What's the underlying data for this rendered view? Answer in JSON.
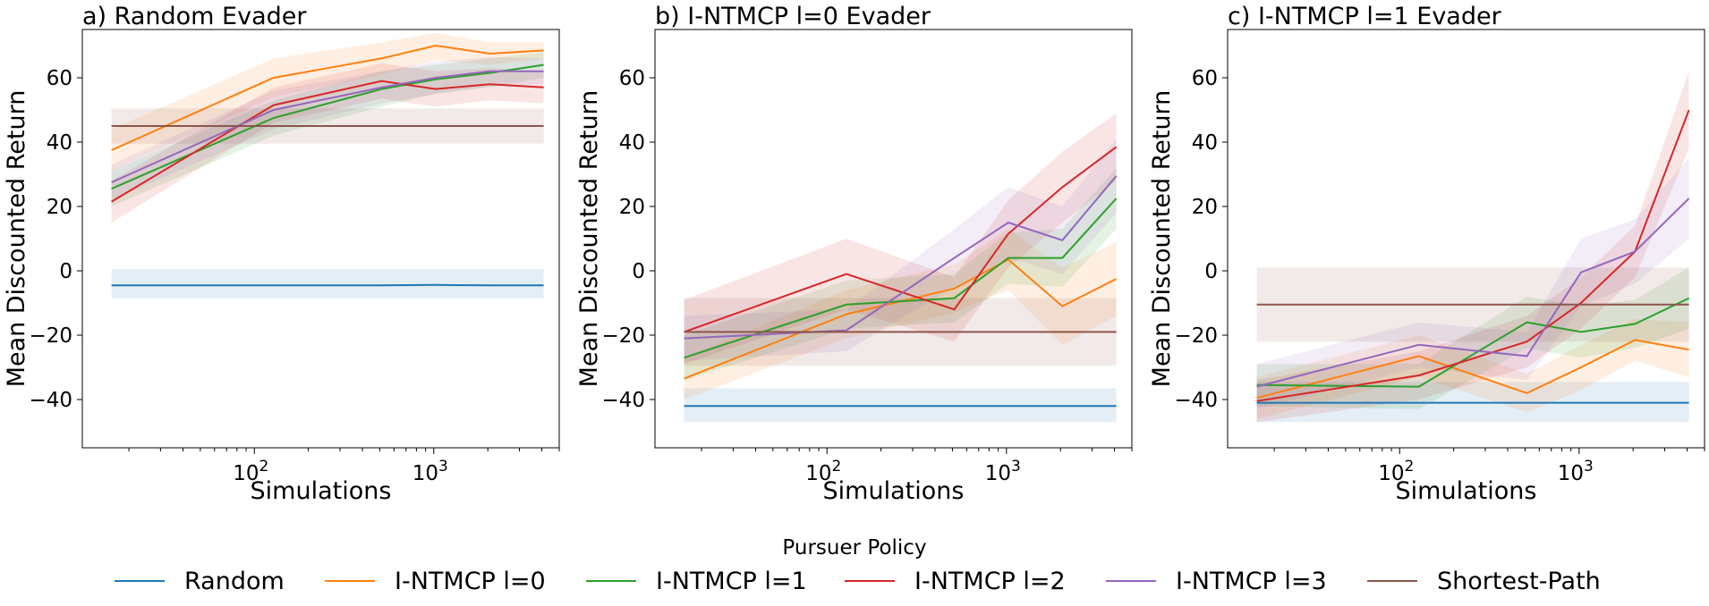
{
  "colors": {
    "random": "#1f77b4",
    "l0": "#ff7f0e",
    "l1": "#2ca02c",
    "l2": "#d62728",
    "l3": "#9467bd",
    "sp": "#8c564b"
  },
  "legend": {
    "title": "Pursuer Policy",
    "entries": [
      {
        "label": "Random",
        "color": "#1f77b4"
      },
      {
        "label": "I-NTMCP l=0",
        "color": "#ff7f0e"
      },
      {
        "label": "I-NTMCP l=1",
        "color": "#2ca02c"
      },
      {
        "label": "I-NTMCP l=2",
        "color": "#d62728"
      },
      {
        "label": "I-NTMCP l=3",
        "color": "#9467bd"
      },
      {
        "label": "Shortest-Path",
        "color": "#8c564b"
      }
    ]
  },
  "chart_data": [
    {
      "type": "line",
      "title": "a) Random Evader",
      "xlabel": "Simulations",
      "ylabel": "Mean Discounted Return",
      "xscale": "log",
      "xlim": [
        11,
        5000
      ],
      "ylim": [
        -55,
        75
      ],
      "yticks": [
        -40,
        -20,
        0,
        20,
        40,
        60
      ],
      "xticks": [
        {
          "value": 100,
          "label": "10",
          "exp": "2"
        },
        {
          "value": 1000,
          "label": "10",
          "exp": "3"
        }
      ],
      "x": [
        16,
        128,
        512,
        1024,
        2048,
        4096
      ],
      "series": [
        {
          "name": "Random",
          "color": "#1f77b4",
          "values": [
            -4.5,
            -4.5,
            -4.5,
            -4.4,
            -4.5,
            -4.5
          ],
          "lower": [
            -8.5,
            -8.5,
            -8.5,
            -8.5,
            -8.5,
            -8.5
          ],
          "upper": [
            0.5,
            0.5,
            0.5,
            0.5,
            0.5,
            0.5
          ]
        },
        {
          "name": "I-NTMCP l=0",
          "color": "#ff7f0e",
          "values": [
            37.5,
            60,
            66,
            70,
            67.5,
            68.5
          ],
          "lower": [
            31,
            54,
            61,
            65.5,
            64,
            66
          ],
          "upper": [
            44,
            66,
            71,
            74,
            71,
            71
          ]
        },
        {
          "name": "I-NTMCP l=1",
          "color": "#2ca02c",
          "values": [
            25.5,
            47.5,
            56.5,
            59.5,
            61.5,
            64
          ],
          "lower": [
            20,
            42,
            51,
            55,
            57,
            60
          ],
          "upper": [
            31,
            53,
            62,
            64,
            66,
            68
          ]
        },
        {
          "name": "I-NTMCP l=2",
          "color": "#d62728",
          "values": [
            21.5,
            51.5,
            59,
            56.5,
            58,
            57
          ],
          "lower": [
            15,
            46,
            53.5,
            51,
            53,
            52
          ],
          "upper": [
            28,
            57,
            64.5,
            62,
            63,
            62
          ]
        },
        {
          "name": "I-NTMCP l=3",
          "color": "#9467bd",
          "values": [
            27.5,
            50,
            57,
            60,
            62,
            62
          ],
          "lower": [
            22,
            44,
            52,
            55,
            57.5,
            58
          ],
          "upper": [
            33,
            56,
            62,
            65,
            66.5,
            66
          ]
        },
        {
          "name": "Shortest-Path",
          "color": "#8c564b",
          "values": [
            45,
            45,
            45,
            45,
            45,
            45
          ],
          "lower": [
            39.5,
            39.5,
            39.5,
            39.5,
            39.5,
            39.5
          ],
          "upper": [
            50.5,
            50.5,
            50.5,
            50.5,
            50.5,
            50.5
          ]
        }
      ]
    },
    {
      "type": "line",
      "title": "b) I-NTMCP l=0 Evader",
      "xlabel": "Simulations",
      "ylabel": "Mean Discounted Return",
      "xscale": "log",
      "xlim": [
        11,
        5000
      ],
      "ylim": [
        -55,
        75
      ],
      "yticks": [
        -40,
        -20,
        0,
        20,
        40,
        60
      ],
      "xticks": [
        {
          "value": 100,
          "label": "10",
          "exp": "2"
        },
        {
          "value": 1000,
          "label": "10",
          "exp": "3"
        }
      ],
      "x": [
        16,
        128,
        512,
        1024,
        2048,
        4096
      ],
      "series": [
        {
          "name": "Random",
          "color": "#1f77b4",
          "values": [
            -42,
            -42,
            -42,
            -42,
            -42,
            -42
          ],
          "lower": [
            -47,
            -47,
            -47,
            -47,
            -47,
            -47
          ],
          "upper": [
            -36.5,
            -36.5,
            -36.5,
            -36.5,
            -36.5,
            -36.5
          ]
        },
        {
          "name": "I-NTMCP l=0",
          "color": "#ff7f0e",
          "values": [
            -33.5,
            -13.5,
            -5.5,
            3.5,
            -11,
            -2.5
          ],
          "lower": [
            -40,
            -21,
            -13,
            -6,
            -23,
            -14
          ],
          "upper": [
            -27,
            -6,
            2,
            13,
            1,
            9
          ]
        },
        {
          "name": "I-NTMCP l=1",
          "color": "#2ca02c",
          "values": [
            -27,
            -10.5,
            -8.5,
            4,
            4,
            22.5
          ],
          "lower": [
            -34,
            -18,
            -16,
            -4,
            -5,
            13
          ],
          "upper": [
            -20,
            -3,
            -1,
            12,
            13,
            32
          ]
        },
        {
          "name": "I-NTMCP l=2",
          "color": "#d62728",
          "values": [
            -19,
            -1,
            -12,
            11.5,
            26,
            38.5
          ],
          "lower": [
            -29,
            -12,
            -22,
            1,
            15,
            28
          ],
          "upper": [
            -9,
            10,
            -2,
            22,
            37,
            49
          ]
        },
        {
          "name": "I-NTMCP l=3",
          "color": "#9467bd",
          "values": [
            -21,
            -18.5,
            4,
            15,
            9.5,
            29.5
          ],
          "lower": [
            -28,
            -25,
            -5,
            4,
            -1,
            18
          ],
          "upper": [
            -14,
            -12,
            13,
            26,
            20,
            41
          ]
        },
        {
          "name": "Shortest-Path",
          "color": "#8c564b",
          "values": [
            -19,
            -19,
            -19,
            -19,
            -19,
            -19
          ],
          "lower": [
            -29.5,
            -29.5,
            -29.5,
            -29.5,
            -29.5,
            -29.5
          ],
          "upper": [
            -8.5,
            -8.5,
            -8.5,
            -8.5,
            -8.5,
            -8.5
          ]
        }
      ]
    },
    {
      "type": "line",
      "title": "c) I-NTMCP l=1 Evader",
      "xlabel": "Simulations",
      "ylabel": "Mean Discounted Return",
      "xscale": "log",
      "xlim": [
        11,
        5000
      ],
      "ylim": [
        -55,
        75
      ],
      "yticks": [
        -40,
        -20,
        0,
        20,
        40,
        60
      ],
      "xticks": [
        {
          "value": 100,
          "label": "10",
          "exp": "2"
        },
        {
          "value": 1000,
          "label": "10",
          "exp": "3"
        }
      ],
      "x": [
        16,
        128,
        512,
        1024,
        2048,
        4096
      ],
      "series": [
        {
          "name": "Random",
          "color": "#1f77b4",
          "values": [
            -41,
            -41,
            -41,
            -41,
            -41,
            -41
          ],
          "lower": [
            -47,
            -47,
            -47,
            -47,
            -47,
            -47
          ],
          "upper": [
            -34.5,
            -34.5,
            -34.5,
            -34.5,
            -34.5,
            -34.5
          ]
        },
        {
          "name": "I-NTMCP l=0",
          "color": "#ff7f0e",
          "values": [
            -39.5,
            -26.5,
            -38,
            -30,
            -21.5,
            -24.5
          ],
          "lower": [
            -46,
            -33,
            -44,
            -37,
            -28,
            -33
          ],
          "upper": [
            -33,
            -20,
            -32,
            -23,
            -15,
            -16
          ]
        },
        {
          "name": "I-NTMCP l=1",
          "color": "#2ca02c",
          "values": [
            -35.5,
            -36,
            -16,
            -19,
            -16.5,
            -8.5
          ],
          "lower": [
            -42,
            -43,
            -24,
            -27,
            -24,
            -18
          ],
          "upper": [
            -29,
            -29,
            -8,
            -11,
            -9,
            1
          ]
        },
        {
          "name": "I-NTMCP l=2",
          "color": "#d62728",
          "values": [
            -40.5,
            -32.5,
            -22,
            -10,
            6,
            50
          ],
          "lower": [
            -47,
            -40,
            -30,
            -18,
            -2,
            38
          ],
          "upper": [
            -34,
            -25,
            -14,
            -2,
            14,
            62
          ]
        },
        {
          "name": "I-NTMCP l=3",
          "color": "#9467bd",
          "values": [
            -36,
            -23,
            -26.5,
            -0.5,
            6,
            22.5
          ],
          "lower": [
            -43,
            -30,
            -34,
            -11,
            -4,
            10
          ],
          "upper": [
            -29,
            -16,
            -19,
            10,
            16,
            35
          ]
        },
        {
          "name": "Shortest-Path",
          "color": "#8c564b",
          "values": [
            -10.5,
            -10.5,
            -10.5,
            -10.5,
            -10.5,
            -10.5
          ],
          "lower": [
            -22,
            -22,
            -22,
            -22,
            -22,
            -22
          ],
          "upper": [
            1,
            1,
            1,
            1,
            1,
            1
          ]
        }
      ]
    }
  ]
}
